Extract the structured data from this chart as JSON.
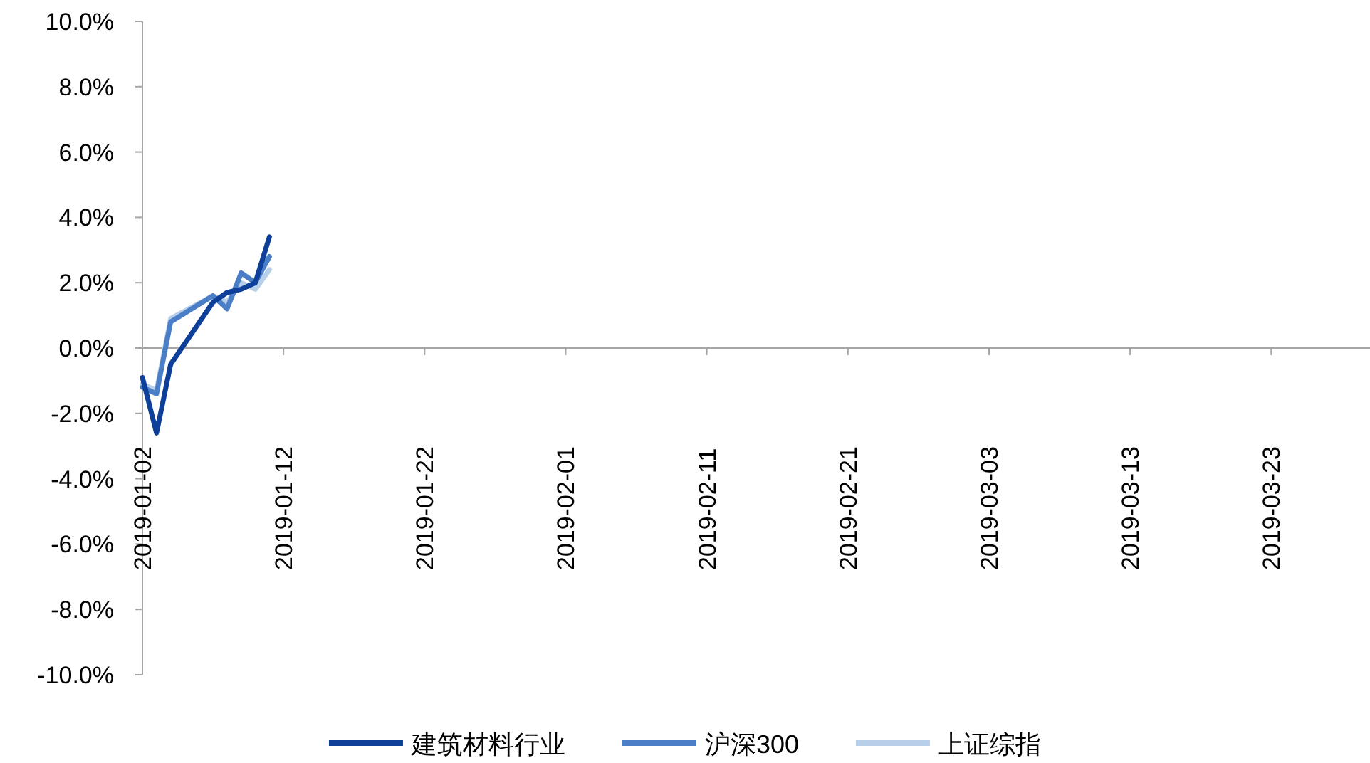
{
  "chart_data": {
    "type": "line",
    "x": [
      "2019-01-02",
      "2019-01-03",
      "2019-01-04",
      "2019-01-07",
      "2019-01-08",
      "2019-01-09",
      "2019-01-10",
      "2019-01-11"
    ],
    "series": [
      {
        "name": "建筑材料行业",
        "color": "#0e3f99",
        "values": [
          -0.9,
          -2.6,
          -0.5,
          1.4,
          1.7,
          1.8,
          2.0,
          3.4
        ]
      },
      {
        "name": "沪深300",
        "color": "#4a7fc8",
        "values": [
          -1.2,
          -1.4,
          0.8,
          1.6,
          1.2,
          2.3,
          2.0,
          2.8
        ]
      },
      {
        "name": "上证综指",
        "color": "#b8cfea",
        "values": [
          -1.1,
          -1.3,
          0.9,
          1.6,
          1.4,
          2.0,
          1.8,
          2.4
        ]
      }
    ],
    "xlim": [
      "2019-01-02",
      "2019-03-30"
    ],
    "xticks": [
      {
        "value": "2019-01-02",
        "label": "2019-01-02"
      },
      {
        "value": "2019-01-12",
        "label": "2019-01-12"
      },
      {
        "value": "2019-01-22",
        "label": "2019-01-22"
      },
      {
        "value": "2019-02-01",
        "label": "2019-02-01"
      },
      {
        "value": "2019-02-11",
        "label": "2019-02-11"
      },
      {
        "value": "2019-02-21",
        "label": "2019-02-21"
      },
      {
        "value": "2019-03-03",
        "label": "2019-03-03"
      },
      {
        "value": "2019-03-13",
        "label": "2019-03-13"
      },
      {
        "value": "2019-03-23",
        "label": "2019-03-23"
      }
    ],
    "ylim": [
      -10,
      10
    ],
    "yticks": [
      {
        "value": -10,
        "label": "-10.0%"
      },
      {
        "value": -8,
        "label": "-8.0%"
      },
      {
        "value": -6,
        "label": "-6.0%"
      },
      {
        "value": -4,
        "label": "-4.0%"
      },
      {
        "value": -2,
        "label": "-2.0%"
      },
      {
        "value": 0,
        "label": "0.0%"
      },
      {
        "value": 2,
        "label": "2.0%"
      },
      {
        "value": 4,
        "label": "4.0%"
      },
      {
        "value": 6,
        "label": "6.0%"
      },
      {
        "value": 8,
        "label": "8.0%"
      },
      {
        "value": 10,
        "label": "10.0%"
      }
    ],
    "legend": "bottom",
    "marker": "none",
    "line_style": "solid"
  }
}
